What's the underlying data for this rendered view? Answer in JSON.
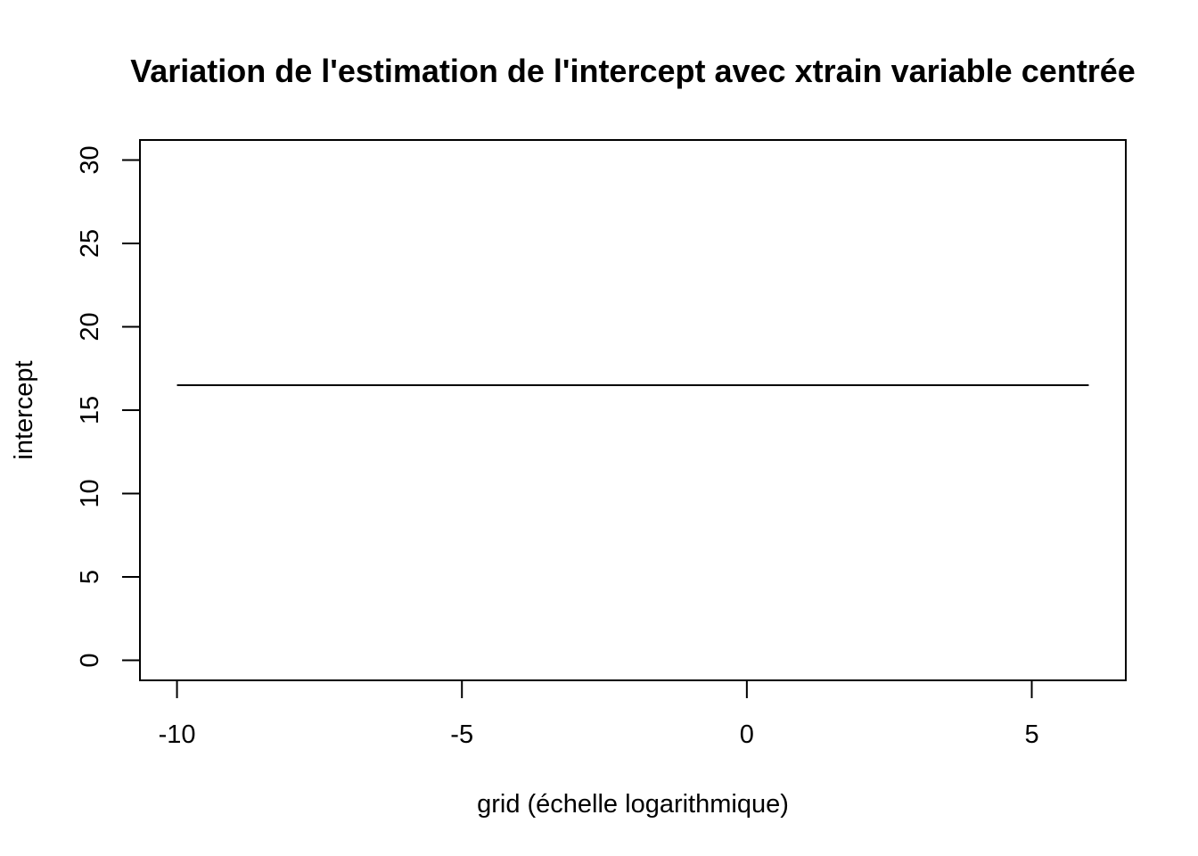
{
  "chart_data": {
    "type": "line",
    "title": "Variation de l'estimation de l'intercept avec xtrain variable centrée",
    "xlabel": "grid (échelle logarithmique)",
    "ylabel": "intercept",
    "x_scale": "log",
    "xlim": [
      -10.65,
      6.65
    ],
    "ylim": [
      -1.2,
      31.2
    ],
    "x_ticks": [
      -10,
      -5,
      0,
      5
    ],
    "x_tick_labels": [
      "-10",
      "-5",
      "0",
      "5"
    ],
    "y_ticks": [
      0,
      5,
      10,
      15,
      20,
      25,
      30
    ],
    "y_tick_labels": [
      "0",
      "5",
      "10",
      "15",
      "20",
      "25",
      "30"
    ],
    "grid": false,
    "series": [
      {
        "x": [
          -10,
          6
        ],
        "y": [
          16.5,
          16.5
        ]
      }
    ],
    "colors": {
      "line": "#000000",
      "axis": "#000000",
      "background": "#ffffff"
    }
  }
}
